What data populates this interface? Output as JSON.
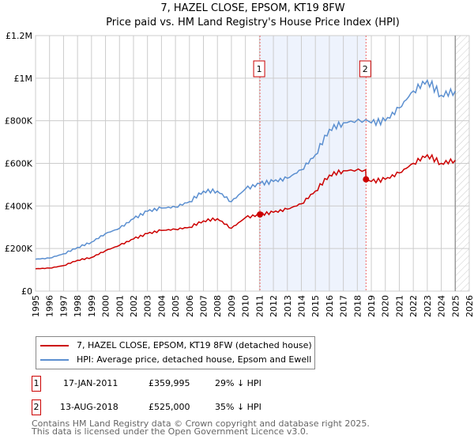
{
  "title": "7, HAZEL CLOSE, EPSOM, KT19 8FW",
  "subtitle": "Price paid vs. HM Land Registry's House Price Index (HPI)",
  "chart_data": {
    "type": "line",
    "ylabel": "",
    "xlabel": "",
    "ylim": [
      0,
      1200000
    ],
    "xlim": [
      1995,
      2026
    ],
    "yticks": [
      {
        "v": 0,
        "label": "£0"
      },
      {
        "v": 200000,
        "label": "£200K"
      },
      {
        "v": 400000,
        "label": "£400K"
      },
      {
        "v": 600000,
        "label": "£600K"
      },
      {
        "v": 800000,
        "label": "£800K"
      },
      {
        "v": 1000000,
        "label": "£1M"
      },
      {
        "v": 1200000,
        "label": "£1.2M"
      }
    ],
    "xticks": [
      "1995",
      "1996",
      "1997",
      "1998",
      "1999",
      "2000",
      "2001",
      "2002",
      "2003",
      "2004",
      "2005",
      "2006",
      "2007",
      "2008",
      "2009",
      "2010",
      "2011",
      "2012",
      "2013",
      "2014",
      "2015",
      "2016",
      "2017",
      "2018",
      "2019",
      "2020",
      "2021",
      "2022",
      "2023",
      "2024",
      "2025",
      "2026"
    ],
    "grid": true,
    "x": [
      1995,
      1996,
      1997,
      1998,
      1999,
      2000,
      2001,
      2002,
      2003,
      2004,
      2005,
      2006,
      2007,
      2008,
      2009,
      2010,
      2011.04,
      2012,
      2013,
      2014,
      2015,
      2016,
      2017,
      2018.6,
      2018.62,
      2019,
      2020,
      2021,
      2022,
      2023,
      2024,
      2025
    ],
    "series": [
      {
        "name": "7, HAZEL CLOSE, EPSOM, KT19 8FW (detached house)",
        "color": "#cc0000",
        "values": [
          105000,
          108000,
          120000,
          145000,
          158000,
          190000,
          215000,
          245000,
          270000,
          285000,
          290000,
          300000,
          330000,
          340000,
          295000,
          345000,
          359995,
          370000,
          385000,
          410000,
          470000,
          545000,
          565000,
          570000,
          525000,
          515000,
          525000,
          555000,
          600000,
          640000,
          600000,
          615000
        ]
      },
      {
        "name": "HPI: Average price, detached house, Epsom and Ewell",
        "color": "#5b8fd0",
        "values": [
          150000,
          155000,
          175000,
          205000,
          230000,
          270000,
          295000,
          340000,
          375000,
          390000,
          395000,
          420000,
          470000,
          470000,
          420000,
          480000,
          505000,
          515000,
          530000,
          570000,
          640000,
          760000,
          790000,
          805000,
          805000,
          790000,
          800000,
          860000,
          940000,
          990000,
          920000,
          940000
        ]
      }
    ],
    "sales": [
      {
        "n": "1",
        "x": 2011.04,
        "y": 359995
      },
      {
        "n": "2",
        "x": 2018.62,
        "y": 525000
      }
    ],
    "shaded_range": [
      2011.04,
      2018.62
    ],
    "forecast_from": 2025.0,
    "legend_position": "bottom"
  },
  "legend": [
    "7, HAZEL CLOSE, EPSOM, KT19 8FW (detached house)",
    "HPI: Average price, detached house, Epsom and Ewell"
  ],
  "table": [
    {
      "n": "1",
      "date": "17-JAN-2011",
      "price": "£359,995",
      "hpi": "29% ↓ HPI"
    },
    {
      "n": "2",
      "date": "13-AUG-2018",
      "price": "£525,000",
      "hpi": "35% ↓ HPI"
    }
  ],
  "footer": [
    "Contains HM Land Registry data © Crown copyright and database right 2025.",
    "This data is licensed under the Open Government Licence v3.0."
  ]
}
